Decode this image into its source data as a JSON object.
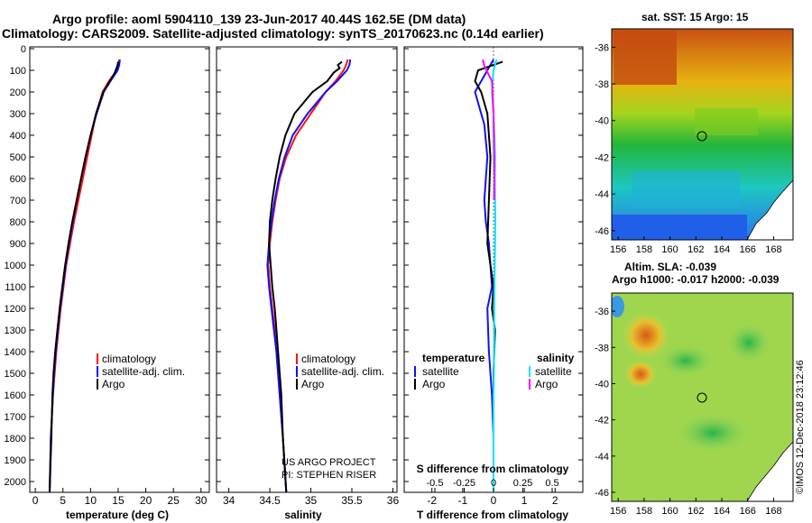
{
  "header": {
    "line1": "Argo profile: aoml 5904110_139 23-Jun-2017 40.44S 162.5E (DM data)",
    "line2": "Climatology: CARS2009. Satellite-adjusted climatology: synTS_20170623.nc (0.14d earlier)"
  },
  "credit": "©IMOS 12-Dec-2018 23:12:46",
  "colors": {
    "climatology": "#ff1010",
    "satellite_adj": "#1010ff",
    "argo": "#000000",
    "satellite_diff": "#00e5ff",
    "argo_salinity_diff": "#ff00ff"
  },
  "pressure_ticks": [
    "0",
    "100",
    "200",
    "300",
    "400",
    "500",
    "600",
    "700",
    "800",
    "900",
    "1000",
    "1100",
    "1200",
    "1300",
    "1400",
    "1500",
    "1600",
    "1700",
    "1800",
    "1900",
    "2000"
  ],
  "panels": {
    "temperature": {
      "xlabel": "temperature (deg C)",
      "ticks": [
        "0",
        "5",
        "10",
        "15",
        "20",
        "25",
        "30"
      ],
      "legend": [
        "climatology",
        "satellite-adj. clim.",
        "Argo"
      ]
    },
    "salinity": {
      "xlabel": "salinity",
      "ticks": [
        "34",
        "34.5",
        "35",
        "35.5",
        "36"
      ],
      "legend": [
        "climatology",
        "satellite-adj. clim.",
        "Argo"
      ],
      "note": [
        "US ARGO PROJECT",
        "PI: STEPHEN RISER"
      ]
    },
    "difference": {
      "xlabel": "T difference from climatology",
      "s_label": "S difference from climatology",
      "t_ticks": [
        "-2",
        "-1",
        "0",
        "1",
        "2"
      ],
      "s_ticks": [
        "-0.5",
        "-0.25",
        "0",
        "0.25",
        "0.5"
      ],
      "legend_left_title": "temperature",
      "legend_left": [
        "satellite",
        "Argo"
      ],
      "legend_right_title": "salinity",
      "legend_right": [
        "satellite",
        "Argo"
      ]
    }
  },
  "maps": {
    "sst_title": "sat. SST: 15 Argo: 15",
    "sla_line1": "Altim. SLA: -0.039",
    "sla_line2": "Argo h1000: -0.017 h2000: -0.039",
    "lon_ticks": [
      "156",
      "158",
      "160",
      "162",
      "164",
      "166",
      "168"
    ],
    "lat_ticks": [
      "-36",
      "-38",
      "-40",
      "-42",
      "-44",
      "-46"
    ],
    "float_position": {
      "lon": 162.5,
      "lat": -40.44
    }
  },
  "chart_data": [
    {
      "type": "line",
      "title": "",
      "xlabel": "temperature (deg C)",
      "ylabel": "",
      "xlim": [
        -1,
        31.5
      ],
      "ylim": [
        2050,
        0
      ],
      "grid": false,
      "legend": "center-left",
      "series": [
        {
          "name": "climatology",
          "color": "#ff1010",
          "x": [
            15.2,
            15.1,
            14.8,
            13.3,
            12.2,
            11.0,
            10.2,
            9.4,
            8.6,
            7.8,
            7.0,
            6.3,
            5.6,
            5.1,
            4.6,
            4.2,
            3.8,
            3.5,
            3.2,
            3.0,
            2.8,
            2.6
          ],
          "y": [
            50,
            75,
            100,
            150,
            200,
            300,
            400,
            500,
            600,
            700,
            800,
            900,
            1000,
            1100,
            1200,
            1300,
            1400,
            1500,
            1600,
            1700,
            1800,
            2050
          ]
        },
        {
          "name": "satellite-adj. clim.",
          "color": "#1010ff",
          "x": [
            15.3,
            15.2,
            14.9,
            13.6,
            12.4,
            11.1,
            10.0,
            9.1,
            8.3,
            7.5,
            6.8,
            6.1,
            5.5,
            5.0,
            4.5,
            4.1,
            3.7,
            3.4,
            3.2,
            3.0,
            2.8,
            2.6
          ],
          "y": [
            50,
            75,
            100,
            150,
            200,
            300,
            400,
            500,
            600,
            700,
            800,
            900,
            1000,
            1100,
            1200,
            1300,
            1400,
            1500,
            1600,
            1700,
            1800,
            2050
          ]
        },
        {
          "name": "Argo",
          "color": "#000000",
          "x": [
            15.0,
            14.9,
            14.7,
            14.4,
            13.5,
            12.3,
            11.0,
            10.0,
            9.1,
            8.3,
            7.5,
            6.7,
            6.0,
            5.4,
            4.9,
            4.4,
            4.0,
            3.6,
            3.3,
            3.1,
            2.9,
            2.6
          ],
          "y": [
            60,
            75,
            90,
            110,
            150,
            200,
            300,
            400,
            500,
            600,
            700,
            800,
            900,
            1000,
            1100,
            1200,
            1300,
            1400,
            1500,
            1600,
            1800,
            2050
          ]
        }
      ]
    },
    {
      "type": "line",
      "title": "",
      "xlabel": "salinity",
      "ylabel": "",
      "xlim": [
        33.85,
        36.05
      ],
      "ylim": [
        2050,
        0
      ],
      "grid": false,
      "legend": "center-right",
      "series": [
        {
          "name": "climatology",
          "color": "#ff1010",
          "x": [
            35.45,
            35.43,
            35.4,
            35.3,
            35.18,
            35.0,
            34.82,
            34.7,
            34.62,
            34.57,
            34.53,
            34.5,
            34.48,
            34.5,
            34.53,
            34.56,
            34.58,
            34.6,
            34.62,
            34.64,
            34.66,
            34.7
          ],
          "y": [
            50,
            75,
            100,
            150,
            200,
            300,
            400,
            500,
            600,
            700,
            800,
            900,
            1000,
            1100,
            1200,
            1300,
            1400,
            1500,
            1600,
            1700,
            1800,
            2050
          ]
        },
        {
          "name": "satellite-adj. clim.",
          "color": "#1010ff",
          "x": [
            35.48,
            35.47,
            35.44,
            35.32,
            35.18,
            34.96,
            34.78,
            34.68,
            34.61,
            34.56,
            34.52,
            34.49,
            34.47,
            34.49,
            34.52,
            34.55,
            34.58,
            34.6,
            34.62,
            34.64,
            34.66,
            34.7
          ],
          "y": [
            50,
            75,
            100,
            150,
            200,
            300,
            400,
            500,
            600,
            700,
            800,
            900,
            1000,
            1100,
            1200,
            1300,
            1400,
            1500,
            1600,
            1700,
            1800,
            2050
          ]
        },
        {
          "name": "Argo",
          "color": "#000000",
          "x": [
            35.38,
            35.33,
            35.35,
            35.28,
            35.2,
            35.02,
            34.8,
            34.69,
            34.62,
            34.57,
            34.53,
            34.5,
            34.49,
            34.51,
            34.53,
            34.56,
            34.58,
            34.6,
            34.62,
            34.64,
            34.66,
            34.7
          ],
          "y": [
            60,
            75,
            90,
            110,
            150,
            200,
            300,
            400,
            500,
            600,
            700,
            800,
            900,
            1000,
            1100,
            1200,
            1300,
            1400,
            1500,
            1600,
            1800,
            2050
          ]
        }
      ]
    },
    {
      "type": "line",
      "title": "",
      "xlabel": "T difference from climatology",
      "ylabel": "",
      "xlim": [
        -2.9,
        2.9
      ],
      "ylim": [
        2050,
        0
      ],
      "grid": false,
      "legend": "bottom",
      "series": [
        {
          "name": "temperature satellite",
          "color": "#1010ff",
          "x": [
            0.0,
            -0.2,
            -0.4,
            -0.6,
            -0.5,
            -0.3,
            -0.2,
            -0.3,
            -0.25,
            -0.15,
            -0.1,
            -0.05,
            -0.2,
            -0.15,
            -0.05,
            0.0,
            0.0,
            0.0
          ],
          "y": [
            50,
            100,
            150,
            200,
            250,
            350,
            500,
            700,
            800,
            900,
            1000,
            1100,
            1200,
            1400,
            1600,
            1800,
            1900,
            2050
          ]
        },
        {
          "name": "temperature Argo",
          "color": "#000000",
          "x": [
            0.3,
            -0.1,
            -0.5,
            -0.6,
            -0.4,
            -0.2,
            -0.1,
            -0.15,
            -0.2,
            -0.1,
            0.0,
            -0.05,
            0.05,
            0.0,
            0.0,
            0.0,
            0.0
          ],
          "y": [
            60,
            80,
            100,
            150,
            200,
            300,
            500,
            700,
            900,
            1000,
            1100,
            1200,
            1300,
            1500,
            1700,
            1900,
            2050
          ]
        },
        {
          "name": "salinity satellite",
          "color": "#00e5ff",
          "x": [
            0.1,
            0.0,
            -0.05,
            0.0,
            0.03,
            0.05,
            0.04,
            0.06,
            0.05,
            0.04,
            0.03,
            0.02,
            0.02,
            0.0,
            0.0,
            0.0
          ],
          "y": [
            50,
            100,
            200,
            300,
            400,
            500,
            600,
            800,
            900,
            1000,
            1100,
            1200,
            1400,
            1600,
            1800,
            2050
          ]
        },
        {
          "name": "salinity Argo",
          "color": "#ff00ff",
          "x": [
            -0.35,
            -0.3,
            -0.05,
            0.0,
            0.02,
            0.03,
            0.02
          ],
          "y": [
            50,
            80,
            150,
            300,
            500,
            600,
            700
          ]
        }
      ]
    }
  ]
}
